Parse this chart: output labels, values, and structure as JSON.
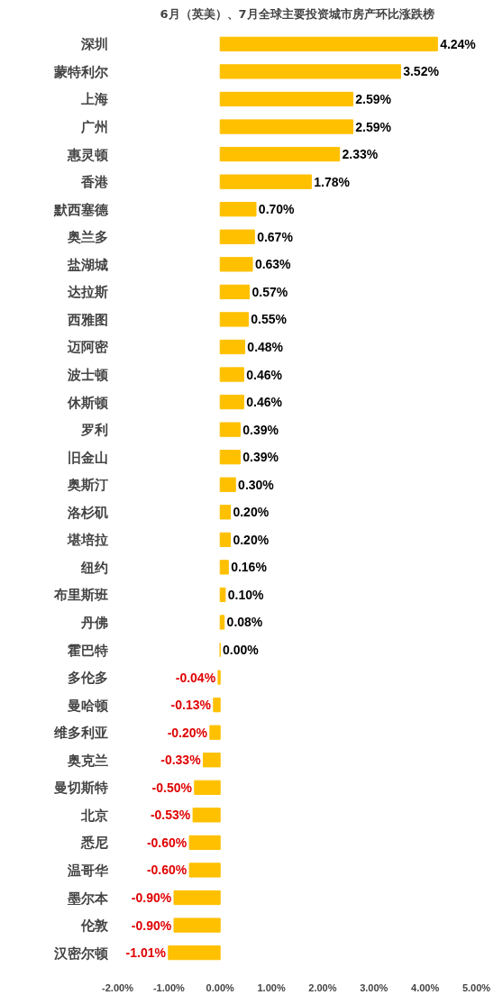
{
  "chart_data": {
    "type": "bar",
    "orientation": "horizontal",
    "title": "6月（英美）、7月全球主要投资城市房产环比涨跌榜",
    "categories": [
      "深圳",
      "蒙特利尔",
      "上海",
      "广州",
      "惠灵顿",
      "香港",
      "默西塞德",
      "奥兰多",
      "盐湖城",
      "达拉斯",
      "西雅图",
      "迈阿密",
      "波士顿",
      "休斯顿",
      "罗利",
      "旧金山",
      "奥斯汀",
      "洛杉矶",
      "堪培拉",
      "纽约",
      "布里斯班",
      "丹佛",
      "霍巴特",
      "多伦多",
      "曼哈顿",
      "维多利亚",
      "奥克兰",
      "曼切斯特",
      "北京",
      "悉尼",
      "温哥华",
      "墨尔本",
      "伦敦",
      "汉密尔顿"
    ],
    "values": [
      4.24,
      3.52,
      2.59,
      2.59,
      2.33,
      1.78,
      0.7,
      0.67,
      0.63,
      0.57,
      0.55,
      0.48,
      0.46,
      0.46,
      0.39,
      0.39,
      0.3,
      0.2,
      0.2,
      0.16,
      0.1,
      0.08,
      0.0,
      -0.04,
      -0.13,
      -0.2,
      -0.33,
      -0.5,
      -0.53,
      -0.6,
      -0.6,
      -0.9,
      -0.9,
      -1.01
    ],
    "value_labels": [
      "4.24%",
      "3.52%",
      "2.59%",
      "2.59%",
      "2.33%",
      "1.78%",
      "0.70%",
      "0.67%",
      "0.63%",
      "0.57%",
      "0.55%",
      "0.48%",
      "0.46%",
      "0.46%",
      "0.39%",
      "0.39%",
      "0.30%",
      "0.20%",
      "0.20%",
      "0.16%",
      "0.10%",
      "0.08%",
      "0.00%",
      "-0.04%",
      "-0.13%",
      "-0.20%",
      "-0.33%",
      "-0.50%",
      "-0.53%",
      "-0.60%",
      "-0.60%",
      "-0.90%",
      "-0.90%",
      "-1.01%"
    ],
    "color": "#ffc000",
    "xlim": [
      -2,
      5
    ],
    "xticks": [
      {
        "value": -2,
        "label": "-2.00%"
      },
      {
        "value": -1,
        "label": "-1.00%"
      },
      {
        "value": 0,
        "label": "0.00%"
      },
      {
        "value": 1,
        "label": "1.00%"
      },
      {
        "value": 2,
        "label": "2.00%"
      },
      {
        "value": 3,
        "label": "3.00%"
      },
      {
        "value": 4,
        "label": "4.00%"
      },
      {
        "value": 5,
        "label": "5.00%"
      }
    ],
    "grid": false
  }
}
